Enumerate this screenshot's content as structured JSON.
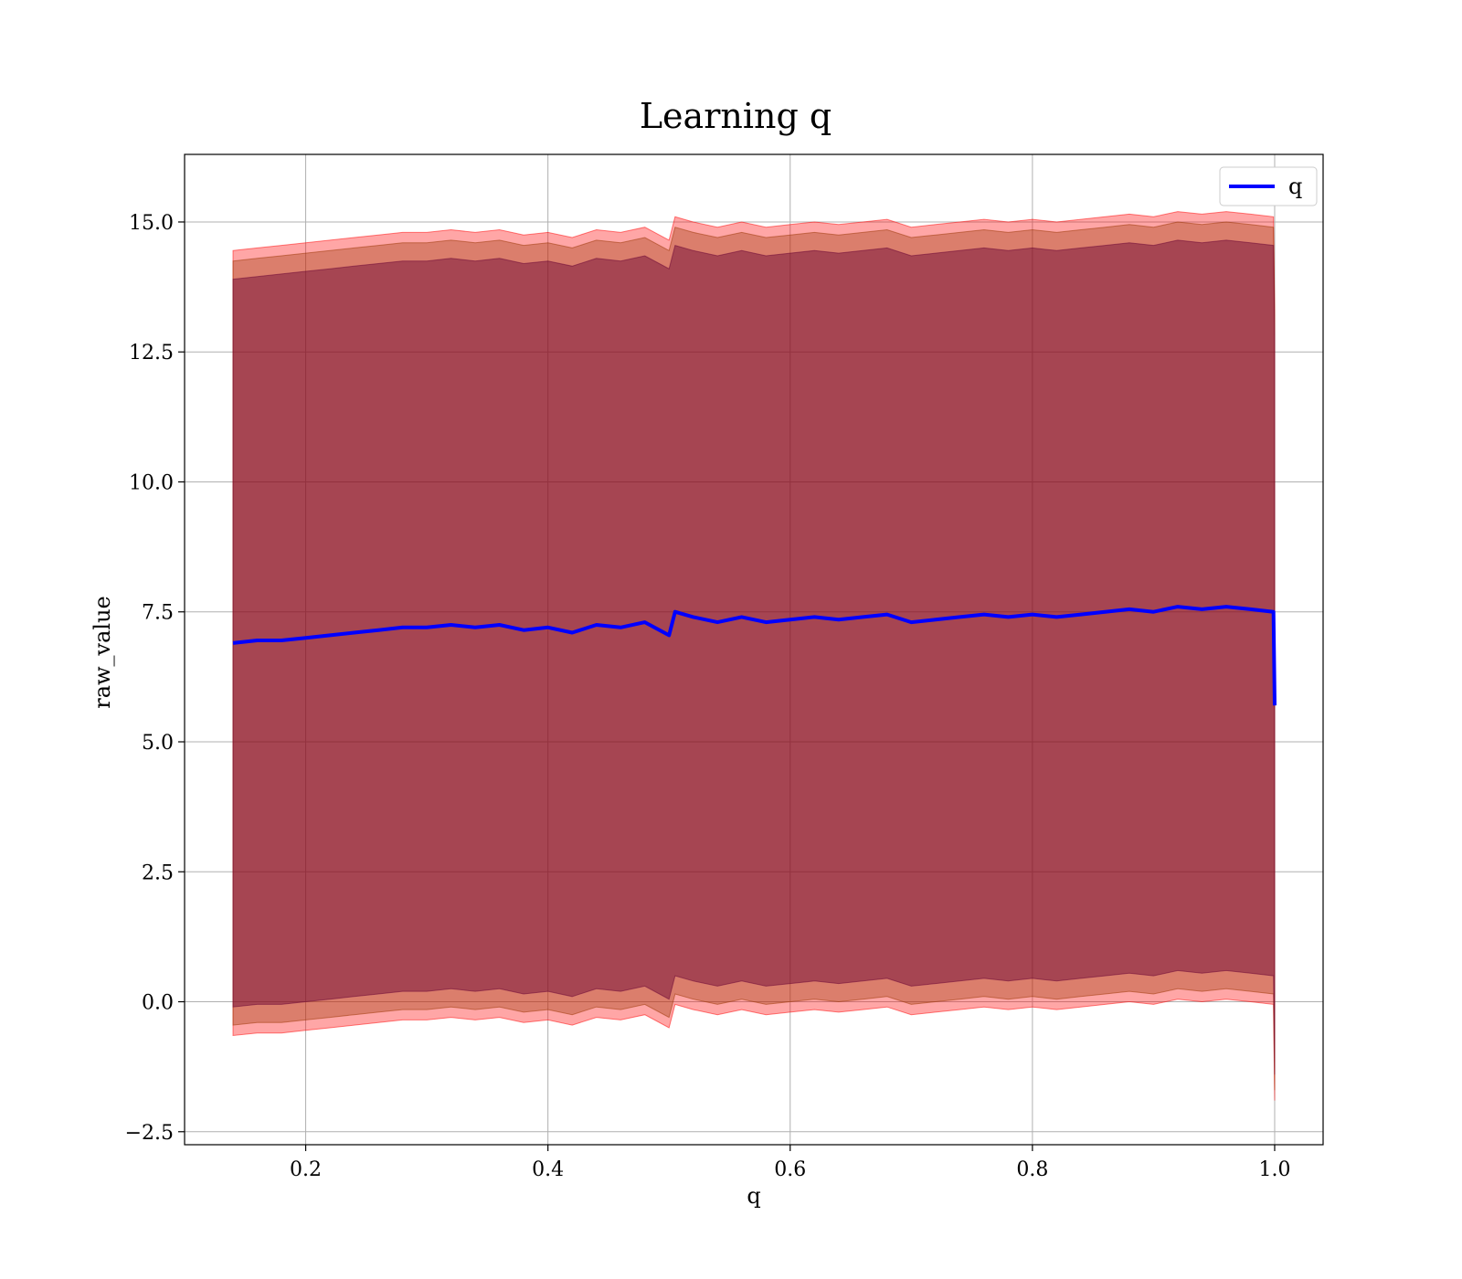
{
  "chart_data": {
    "type": "line",
    "title": "Learning q",
    "xlabel": "q",
    "ylabel": "raw_value",
    "xlim": [
      0.1,
      1.04
    ],
    "ylim": [
      -2.75,
      16.3
    ],
    "xticks": [
      0.2,
      0.4,
      0.6,
      0.8,
      1.0
    ],
    "xtick_labels": [
      "0.2",
      "0.4",
      "0.6",
      "0.8",
      "1.0"
    ],
    "yticks": [
      -2.5,
      0.0,
      2.5,
      5.0,
      7.5,
      10.0,
      12.5,
      15.0
    ],
    "ytick_labels": [
      "−2.5",
      "0.0",
      "2.5",
      "5.0",
      "7.5",
      "10.0",
      "12.5",
      "15.0"
    ],
    "grid": true,
    "legend": {
      "position": "top-right",
      "entries": [
        "q"
      ]
    },
    "series": [
      {
        "name": "q",
        "color": "#0000ff",
        "x": [
          0.14,
          0.16,
          0.18,
          0.2,
          0.22,
          0.24,
          0.26,
          0.28,
          0.3,
          0.32,
          0.34,
          0.36,
          0.38,
          0.4,
          0.42,
          0.44,
          0.46,
          0.48,
          0.5,
          0.505,
          0.52,
          0.54,
          0.56,
          0.58,
          0.6,
          0.62,
          0.64,
          0.66,
          0.68,
          0.7,
          0.72,
          0.74,
          0.76,
          0.78,
          0.8,
          0.82,
          0.84,
          0.86,
          0.88,
          0.9,
          0.92,
          0.94,
          0.96,
          0.98,
          0.999,
          1.0
        ],
        "y": [
          6.9,
          6.95,
          6.95,
          7.0,
          7.05,
          7.1,
          7.15,
          7.2,
          7.2,
          7.25,
          7.2,
          7.25,
          7.15,
          7.2,
          7.1,
          7.25,
          7.2,
          7.3,
          7.05,
          7.5,
          7.4,
          7.3,
          7.4,
          7.3,
          7.35,
          7.4,
          7.35,
          7.4,
          7.45,
          7.3,
          7.35,
          7.4,
          7.45,
          7.4,
          7.45,
          7.4,
          7.45,
          7.5,
          7.55,
          7.5,
          7.6,
          7.55,
          7.6,
          7.55,
          7.5,
          5.7
        ]
      }
    ],
    "bands": [
      {
        "color": "#ff0000",
        "opacity": 0.35,
        "upper": [
          14.45,
          14.5,
          14.55,
          14.6,
          14.65,
          14.7,
          14.75,
          14.8,
          14.8,
          14.85,
          14.8,
          14.85,
          14.75,
          14.8,
          14.7,
          14.85,
          14.8,
          14.9,
          14.65,
          15.1,
          15.0,
          14.9,
          15.0,
          14.9,
          14.95,
          15.0,
          14.95,
          15.0,
          15.05,
          14.9,
          14.95,
          15.0,
          15.05,
          15.0,
          15.05,
          15.0,
          15.05,
          15.1,
          15.15,
          15.1,
          15.2,
          15.15,
          15.2,
          15.15,
          15.1,
          13.3
        ],
        "lower": [
          -0.65,
          -0.6,
          -0.6,
          -0.55,
          -0.5,
          -0.45,
          -0.4,
          -0.35,
          -0.35,
          -0.3,
          -0.35,
          -0.3,
          -0.4,
          -0.35,
          -0.45,
          -0.3,
          -0.35,
          -0.25,
          -0.5,
          -0.05,
          -0.15,
          -0.25,
          -0.15,
          -0.25,
          -0.2,
          -0.15,
          -0.2,
          -0.15,
          -0.1,
          -0.25,
          -0.2,
          -0.15,
          -0.1,
          -0.15,
          -0.1,
          -0.15,
          -0.1,
          -0.05,
          0.0,
          -0.05,
          0.05,
          0.0,
          0.05,
          0.0,
          -0.05,
          -1.9
        ]
      },
      {
        "color": "#993300",
        "opacity": 0.35,
        "upper": [
          14.25,
          14.3,
          14.35,
          14.4,
          14.45,
          14.5,
          14.55,
          14.6,
          14.6,
          14.65,
          14.6,
          14.65,
          14.55,
          14.6,
          14.5,
          14.65,
          14.6,
          14.7,
          14.45,
          14.9,
          14.8,
          14.7,
          14.8,
          14.7,
          14.75,
          14.8,
          14.75,
          14.8,
          14.85,
          14.7,
          14.75,
          14.8,
          14.85,
          14.8,
          14.85,
          14.8,
          14.85,
          14.9,
          14.95,
          14.9,
          15.0,
          14.95,
          15.0,
          14.95,
          14.9,
          13.1
        ],
        "lower": [
          -0.45,
          -0.4,
          -0.4,
          -0.35,
          -0.3,
          -0.25,
          -0.2,
          -0.15,
          -0.15,
          -0.1,
          -0.15,
          -0.1,
          -0.2,
          -0.15,
          -0.25,
          -0.1,
          -0.15,
          -0.05,
          -0.3,
          0.15,
          0.05,
          -0.05,
          0.05,
          -0.05,
          0.0,
          0.05,
          0.0,
          0.05,
          0.1,
          -0.05,
          0.0,
          0.05,
          0.1,
          0.05,
          0.1,
          0.05,
          0.1,
          0.15,
          0.2,
          0.15,
          0.25,
          0.2,
          0.25,
          0.2,
          0.15,
          -1.7
        ]
      },
      {
        "color": "#660033",
        "opacity": 0.45,
        "upper": [
          13.9,
          13.95,
          14.0,
          14.05,
          14.1,
          14.15,
          14.2,
          14.25,
          14.25,
          14.3,
          14.25,
          14.3,
          14.2,
          14.25,
          14.15,
          14.3,
          14.25,
          14.35,
          14.1,
          14.55,
          14.45,
          14.35,
          14.45,
          14.35,
          14.4,
          14.45,
          14.4,
          14.45,
          14.5,
          14.35,
          14.4,
          14.45,
          14.5,
          14.45,
          14.5,
          14.45,
          14.5,
          14.55,
          14.6,
          14.55,
          14.65,
          14.6,
          14.65,
          14.6,
          14.55,
          12.8
        ],
        "lower": [
          -0.1,
          -0.05,
          -0.05,
          0.0,
          0.05,
          0.1,
          0.15,
          0.2,
          0.2,
          0.25,
          0.2,
          0.25,
          0.15,
          0.2,
          0.1,
          0.25,
          0.2,
          0.3,
          0.05,
          0.5,
          0.4,
          0.3,
          0.4,
          0.3,
          0.35,
          0.4,
          0.35,
          0.4,
          0.45,
          0.3,
          0.35,
          0.4,
          0.45,
          0.4,
          0.45,
          0.4,
          0.45,
          0.5,
          0.55,
          0.5,
          0.6,
          0.55,
          0.6,
          0.55,
          0.5,
          -1.4
        ]
      }
    ]
  }
}
